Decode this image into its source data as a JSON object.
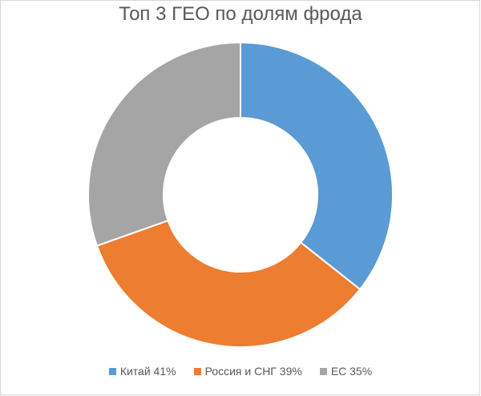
{
  "chart_data": {
    "type": "pie",
    "variant": "donut",
    "title": "Топ 3 ГЕО по долям фрода",
    "categories": [
      "Китай 41%",
      "Россия и СНГ 39%",
      "ЕС 35%"
    ],
    "values": [
      41,
      39,
      35
    ],
    "colors": [
      "#5b9bd5",
      "#ed7d31",
      "#a5a5a5"
    ],
    "legend_position": "bottom"
  }
}
